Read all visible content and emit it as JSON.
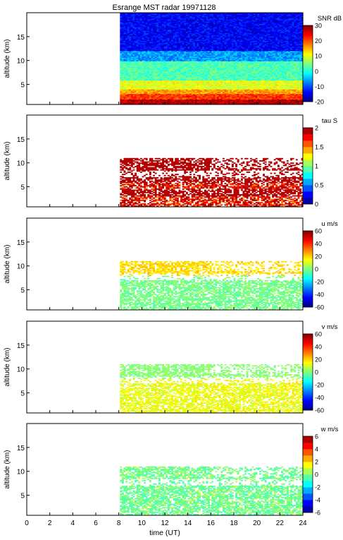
{
  "title": "Esrange MST radar 19971128",
  "chart_data": [
    {
      "type": "heatmap",
      "ylabel": "altitude (km)",
      "ylim": [
        0.8,
        20
      ],
      "yticks": [
        5,
        10,
        15
      ],
      "colorbar": {
        "label": "SNR dB",
        "range": [
          -20,
          30
        ],
        "ticks": [
          -20,
          -10,
          0,
          10,
          20,
          30
        ],
        "palette": "continuous"
      },
      "field": "snr",
      "layers": [
        {
          "alt": [
            1,
            2
          ],
          "level": 0.95
        },
        {
          "alt": [
            2,
            3
          ],
          "level": 0.82
        },
        {
          "alt": [
            3,
            4
          ],
          "level": 0.72
        },
        {
          "alt": [
            4,
            6
          ],
          "level": 0.6
        },
        {
          "alt": [
            6,
            10
          ],
          "level": 0.45
        },
        {
          "alt": [
            10,
            12
          ],
          "level": 0.28
        },
        {
          "alt": [
            12,
            20
          ],
          "level": 0.12
        }
      ]
    },
    {
      "type": "heatmap",
      "ylabel": "altitude (km)",
      "ylim": [
        0.8,
        20
      ],
      "yticks": [
        5,
        10,
        15
      ],
      "colorbar": {
        "label": "tau S",
        "range": [
          0,
          2
        ],
        "ticks": [
          0,
          0.5,
          1,
          1.5,
          2
        ],
        "palette": "discrete"
      },
      "field": "tau"
    },
    {
      "type": "heatmap",
      "ylabel": "altitude (km)",
      "ylim": [
        0.8,
        20
      ],
      "yticks": [
        5,
        10,
        15
      ],
      "colorbar": {
        "label": "u m/s",
        "range": [
          -60,
          60
        ],
        "ticks": [
          -60,
          -40,
          -20,
          0,
          20,
          40,
          60
        ],
        "palette": "continuous"
      },
      "field": "u"
    },
    {
      "type": "heatmap",
      "ylabel": "altitude (km)",
      "ylim": [
        0.8,
        20
      ],
      "yticks": [
        5,
        10,
        15
      ],
      "colorbar": {
        "label": "v m/s",
        "range": [
          -60,
          60
        ],
        "ticks": [
          -60,
          -40,
          -20,
          0,
          20,
          40,
          60
        ],
        "palette": "continuous"
      },
      "field": "v"
    },
    {
      "type": "heatmap",
      "ylabel": "altitude (km)",
      "xlabel": "time (UT)",
      "ylim": [
        0.8,
        20
      ],
      "yticks": [
        5,
        10,
        15
      ],
      "xlim": [
        0,
        24
      ],
      "xticks": [
        0,
        2,
        4,
        6,
        8,
        10,
        12,
        14,
        16,
        18,
        20,
        22,
        24
      ],
      "colorbar": {
        "label": "w m/s",
        "range": [
          -6,
          6
        ],
        "ticks": [
          -6,
          -4,
          -2,
          0,
          2,
          4,
          6
        ],
        "palette": "discrete"
      },
      "field": "w"
    }
  ],
  "data_extent": {
    "time_start": 8.1,
    "time_end": 24,
    "altitude_start": 1,
    "altitude_end": 20
  },
  "colors": {
    "axis": "#000000",
    "background": "#ffffff"
  }
}
